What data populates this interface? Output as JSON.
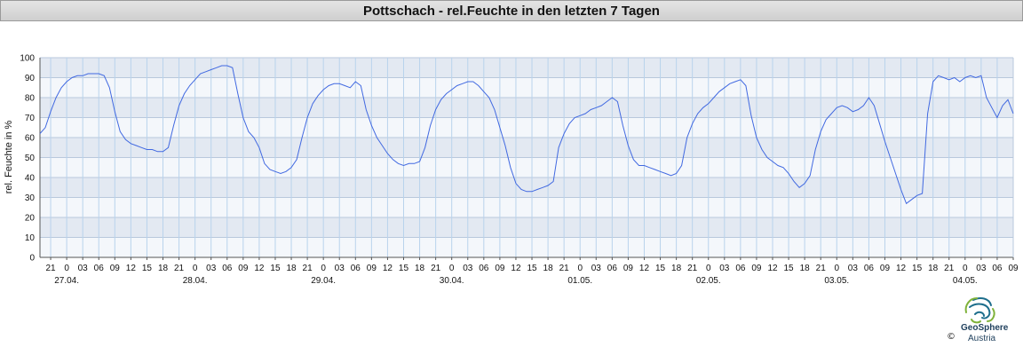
{
  "chart_data": {
    "type": "line",
    "title": "Pottschach - rel.Feuchte in den letzten 7 Tagen",
    "ylabel": "rel. Feuchte in %",
    "xlabel": "",
    "ylim": [
      0,
      100
    ],
    "y_ticks": [
      0,
      10,
      20,
      30,
      40,
      50,
      60,
      70,
      80,
      90,
      100
    ],
    "x_range_hours": [
      "26.04. 19:00",
      "04.05. 09:00"
    ],
    "hour_labels": [
      "21",
      "0",
      "03",
      "06",
      "09",
      "12",
      "15",
      "18",
      "21",
      "0",
      "03",
      "06",
      "09",
      "12",
      "15",
      "18",
      "21",
      "0",
      "03",
      "06",
      "09",
      "12",
      "15",
      "18",
      "21",
      "0",
      "03",
      "06",
      "09",
      "12",
      "15",
      "18",
      "21",
      "0",
      "03",
      "06",
      "09",
      "12",
      "15",
      "18",
      "21",
      "0",
      "03",
      "06",
      "09",
      "12",
      "15",
      "18",
      "21",
      "0",
      "03",
      "06",
      "09",
      "12",
      "15",
      "18",
      "21",
      "0",
      "03",
      "06",
      "09",
      "12",
      "15",
      "18",
      "21",
      "0",
      "03",
      "06",
      "09"
    ],
    "date_labels": [
      "27.04.",
      "28.04.",
      "29.04.",
      "30.04.",
      "01.05.",
      "02.05.",
      "03.05.",
      "04.05."
    ],
    "grid": true,
    "series": [
      {
        "color": "#4169e1",
        "points": [
          [
            "26.04. 19:00",
            62
          ],
          [
            "26.04. 20:00",
            65
          ],
          [
            "26.04. 21:00",
            73
          ],
          [
            "26.04. 22:00",
            80
          ],
          [
            "26.04. 23:00",
            85
          ],
          [
            "27.04. 00:00",
            88
          ],
          [
            "27.04. 01:00",
            90
          ],
          [
            "27.04. 02:00",
            91
          ],
          [
            "27.04. 03:00",
            91
          ],
          [
            "27.04. 04:00",
            92
          ],
          [
            "27.04. 05:00",
            92
          ],
          [
            "27.04. 06:00",
            92
          ],
          [
            "27.04. 07:00",
            91
          ],
          [
            "27.04. 08:00",
            85
          ],
          [
            "27.04. 09:00",
            73
          ],
          [
            "27.04. 10:00",
            63
          ],
          [
            "27.04. 11:00",
            59
          ],
          [
            "27.04. 12:00",
            57
          ],
          [
            "27.04. 13:00",
            56
          ],
          [
            "27.04. 14:00",
            55
          ],
          [
            "27.04. 15:00",
            54
          ],
          [
            "27.04. 16:00",
            54
          ],
          [
            "27.04. 17:00",
            53
          ],
          [
            "27.04. 18:00",
            53
          ],
          [
            "27.04. 19:00",
            55
          ],
          [
            "27.04. 20:00",
            66
          ],
          [
            "27.04. 21:00",
            76
          ],
          [
            "27.04. 22:00",
            82
          ],
          [
            "27.04. 23:00",
            86
          ],
          [
            "28.04. 00:00",
            89
          ],
          [
            "28.04. 01:00",
            92
          ],
          [
            "28.04. 02:00",
            93
          ],
          [
            "28.04. 03:00",
            94
          ],
          [
            "28.04. 04:00",
            95
          ],
          [
            "28.04. 05:00",
            96
          ],
          [
            "28.04. 06:00",
            96
          ],
          [
            "28.04. 07:00",
            95
          ],
          [
            "28.04. 08:00",
            82
          ],
          [
            "28.04. 09:00",
            70
          ],
          [
            "28.04. 10:00",
            63
          ],
          [
            "28.04. 11:00",
            60
          ],
          [
            "28.04. 12:00",
            55
          ],
          [
            "28.04. 13:00",
            47
          ],
          [
            "28.04. 14:00",
            44
          ],
          [
            "28.04. 15:00",
            43
          ],
          [
            "28.04. 16:00",
            42
          ],
          [
            "28.04. 17:00",
            43
          ],
          [
            "28.04. 18:00",
            45
          ],
          [
            "28.04. 19:00",
            49
          ],
          [
            "28.04. 20:00",
            60
          ],
          [
            "28.04. 21:00",
            70
          ],
          [
            "28.04. 22:00",
            77
          ],
          [
            "28.04. 23:00",
            81
          ],
          [
            "29.04. 00:00",
            84
          ],
          [
            "29.04. 01:00",
            86
          ],
          [
            "29.04. 02:00",
            87
          ],
          [
            "29.04. 03:00",
            87
          ],
          [
            "29.04. 04:00",
            86
          ],
          [
            "29.04. 05:00",
            85
          ],
          [
            "29.04. 06:00",
            88
          ],
          [
            "29.04. 07:00",
            86
          ],
          [
            "29.04. 08:00",
            74
          ],
          [
            "29.04. 09:00",
            66
          ],
          [
            "29.04. 10:00",
            60
          ],
          [
            "29.04. 11:00",
            56
          ],
          [
            "29.04. 12:00",
            52
          ],
          [
            "29.04. 13:00",
            49
          ],
          [
            "29.04. 14:00",
            47
          ],
          [
            "29.04. 15:00",
            46
          ],
          [
            "29.04. 16:00",
            47
          ],
          [
            "29.04. 17:00",
            47
          ],
          [
            "29.04. 18:00",
            48
          ],
          [
            "29.04. 19:00",
            55
          ],
          [
            "29.04. 20:00",
            66
          ],
          [
            "29.04. 21:00",
            74
          ],
          [
            "29.04. 22:00",
            79
          ],
          [
            "29.04. 23:00",
            82
          ],
          [
            "30.04. 00:00",
            84
          ],
          [
            "30.04. 01:00",
            86
          ],
          [
            "30.04. 02:00",
            87
          ],
          [
            "30.04. 03:00",
            88
          ],
          [
            "30.04. 04:00",
            88
          ],
          [
            "30.04. 05:00",
            86
          ],
          [
            "30.04. 06:00",
            83
          ],
          [
            "30.04. 07:00",
            80
          ],
          [
            "30.04. 08:00",
            74
          ],
          [
            "30.04. 09:00",
            65
          ],
          [
            "30.04. 10:00",
            56
          ],
          [
            "30.04. 11:00",
            45
          ],
          [
            "30.04. 12:00",
            37
          ],
          [
            "30.04. 13:00",
            34
          ],
          [
            "30.04. 14:00",
            33
          ],
          [
            "30.04. 15:00",
            33
          ],
          [
            "30.04. 16:00",
            34
          ],
          [
            "30.04. 17:00",
            35
          ],
          [
            "30.04. 18:00",
            36
          ],
          [
            "30.04. 19:00",
            38
          ],
          [
            "30.04. 20:00",
            55
          ],
          [
            "30.04. 21:00",
            62
          ],
          [
            "30.04. 22:00",
            67
          ],
          [
            "30.04. 23:00",
            70
          ],
          [
            "01.05. 00:00",
            71
          ],
          [
            "01.05. 01:00",
            72
          ],
          [
            "01.05. 02:00",
            74
          ],
          [
            "01.05. 03:00",
            75
          ],
          [
            "01.05. 04:00",
            76
          ],
          [
            "01.05. 05:00",
            78
          ],
          [
            "01.05. 06:00",
            80
          ],
          [
            "01.05. 07:00",
            78
          ],
          [
            "01.05. 08:00",
            66
          ],
          [
            "01.05. 09:00",
            56
          ],
          [
            "01.05. 10:00",
            49
          ],
          [
            "01.05. 11:00",
            46
          ],
          [
            "01.05. 12:00",
            46
          ],
          [
            "01.05. 13:00",
            45
          ],
          [
            "01.05. 14:00",
            44
          ],
          [
            "01.05. 15:00",
            43
          ],
          [
            "01.05. 16:00",
            42
          ],
          [
            "01.05. 17:00",
            41
          ],
          [
            "01.05. 18:00",
            42
          ],
          [
            "01.05. 19:00",
            46
          ],
          [
            "01.05. 20:00",
            60
          ],
          [
            "01.05. 21:00",
            67
          ],
          [
            "01.05. 22:00",
            72
          ],
          [
            "01.05. 23:00",
            75
          ],
          [
            "02.05. 00:00",
            77
          ],
          [
            "02.05. 01:00",
            80
          ],
          [
            "02.05. 02:00",
            83
          ],
          [
            "02.05. 03:00",
            85
          ],
          [
            "02.05. 04:00",
            87
          ],
          [
            "02.05. 05:00",
            88
          ],
          [
            "02.05. 06:00",
            89
          ],
          [
            "02.05. 07:00",
            86
          ],
          [
            "02.05. 08:00",
            71
          ],
          [
            "02.05. 09:00",
            60
          ],
          [
            "02.05. 10:00",
            54
          ],
          [
            "02.05. 11:00",
            50
          ],
          [
            "02.05. 12:00",
            48
          ],
          [
            "02.05. 13:00",
            46
          ],
          [
            "02.05. 14:00",
            45
          ],
          [
            "02.05. 15:00",
            42
          ],
          [
            "02.05. 16:00",
            38
          ],
          [
            "02.05. 17:00",
            35
          ],
          [
            "02.05. 18:00",
            37
          ],
          [
            "02.05. 19:00",
            41
          ],
          [
            "02.05. 20:00",
            54
          ],
          [
            "02.05. 21:00",
            63
          ],
          [
            "02.05. 22:00",
            69
          ],
          [
            "02.05. 23:00",
            72
          ],
          [
            "03.05. 00:00",
            75
          ],
          [
            "03.05. 01:00",
            76
          ],
          [
            "03.05. 02:00",
            75
          ],
          [
            "03.05. 03:00",
            73
          ],
          [
            "03.05. 04:00",
            74
          ],
          [
            "03.05. 05:00",
            76
          ],
          [
            "03.05. 06:00",
            80
          ],
          [
            "03.05. 07:00",
            76
          ],
          [
            "03.05. 08:00",
            67
          ],
          [
            "03.05. 09:00",
            58
          ],
          [
            "03.05. 10:00",
            50
          ],
          [
            "03.05. 11:00",
            42
          ],
          [
            "03.05. 12:00",
            34
          ],
          [
            "03.05. 13:00",
            27
          ],
          [
            "03.05. 14:00",
            29
          ],
          [
            "03.05. 15:00",
            31
          ],
          [
            "03.05. 16:00",
            32
          ],
          [
            "03.05. 17:00",
            72
          ],
          [
            "03.05. 18:00",
            88
          ],
          [
            "03.05. 19:00",
            91
          ],
          [
            "03.05. 20:00",
            90
          ],
          [
            "03.05. 21:00",
            89
          ],
          [
            "03.05. 22:00",
            90
          ],
          [
            "03.05. 23:00",
            88
          ],
          [
            "04.05. 00:00",
            90
          ],
          [
            "04.05. 01:00",
            91
          ],
          [
            "04.05. 02:00",
            90
          ],
          [
            "04.05. 03:00",
            91
          ],
          [
            "04.05. 04:00",
            80
          ],
          [
            "04.05. 05:00",
            75
          ],
          [
            "04.05. 06:00",
            70
          ],
          [
            "04.05. 07:00",
            76
          ],
          [
            "04.05. 08:00",
            79
          ],
          [
            "04.05. 09:00",
            72
          ]
        ]
      }
    ]
  },
  "branding": {
    "logo_line1": "GeoSphere",
    "logo_line2": "Austria",
    "copyright": "©"
  }
}
